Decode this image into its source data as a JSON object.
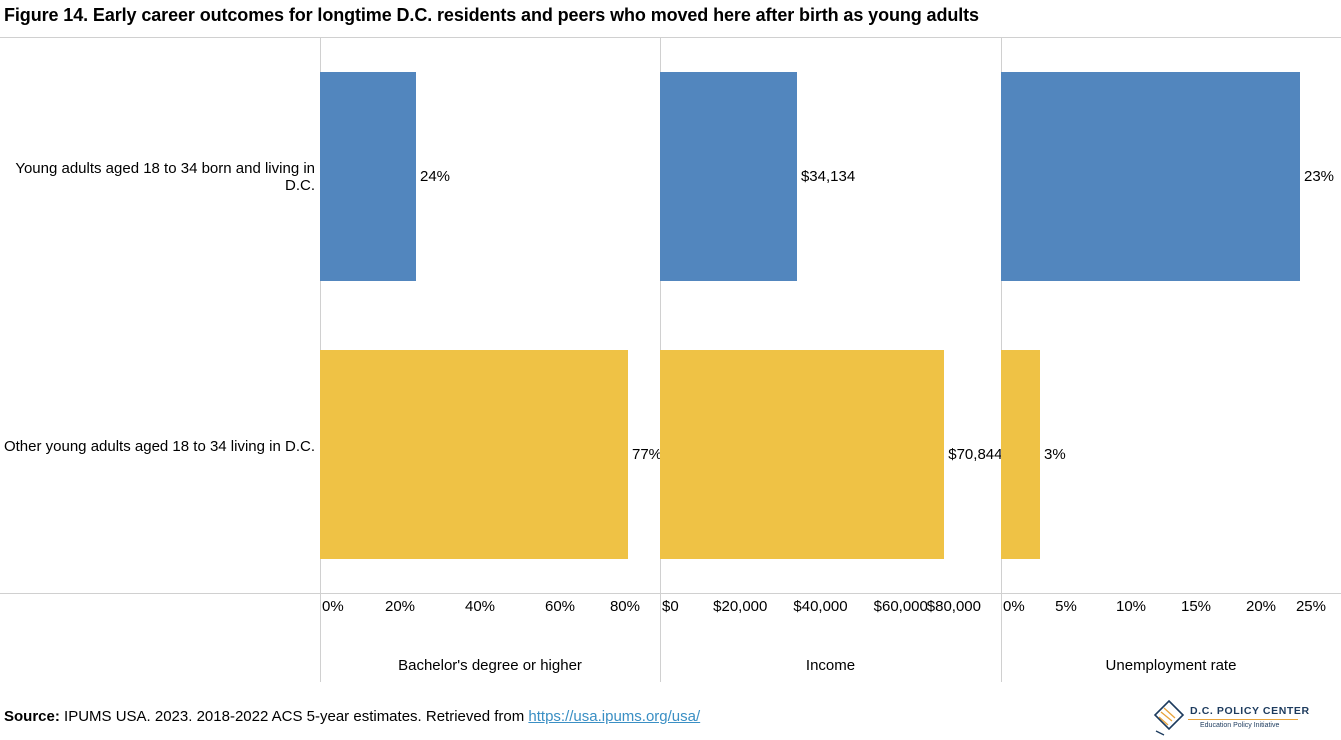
{
  "title": "Figure 14. Early career outcomes for longtime D.C. residents and peers who moved here after birth as young adults",
  "source": {
    "label": "Source:",
    "text": " IPUMS USA. 2023. 2018-2022 ACS 5-year estimates. Retrieved from ",
    "link": "https://usa.ipums.org/usa/"
  },
  "logo": {
    "title": "D.C. POLICY CENTER",
    "subtitle": "Education Policy Initiative"
  },
  "colors": {
    "series1": "#5286be",
    "series2": "#efc245",
    "grid": "#d0d0d0",
    "link": "#3a8fc4"
  },
  "chart_data": {
    "type": "bar",
    "orientation": "horizontal",
    "categories": [
      "Young adults aged 18 to 34 born and living in D.C.",
      "Other young adults aged 18 to 34 living in D.C."
    ],
    "panels": [
      {
        "name": "Bachelor's degree or higher",
        "values": [
          24,
          77
        ],
        "labels": [
          "24%",
          "77%"
        ],
        "xlim": [
          0,
          80
        ],
        "ticks": [
          "0%",
          "20%",
          "40%",
          "60%",
          "80%"
        ]
      },
      {
        "name": "Income",
        "values": [
          34134,
          70844
        ],
        "labels": [
          "$34,134",
          "$70,844"
        ],
        "xlim": [
          0,
          80000
        ],
        "ticks": [
          "$0",
          "$20,000",
          "$40,000",
          "$60,000",
          "$80,000"
        ]
      },
      {
        "name": "Unemployment rate",
        "values": [
          23,
          3
        ],
        "labels": [
          "23%",
          "3%"
        ],
        "xlim": [
          0,
          25
        ],
        "ticks": [
          "0%",
          "5%",
          "10%",
          "15%",
          "20%",
          "25%"
        ]
      }
    ],
    "grid": false,
    "legend": "none"
  }
}
